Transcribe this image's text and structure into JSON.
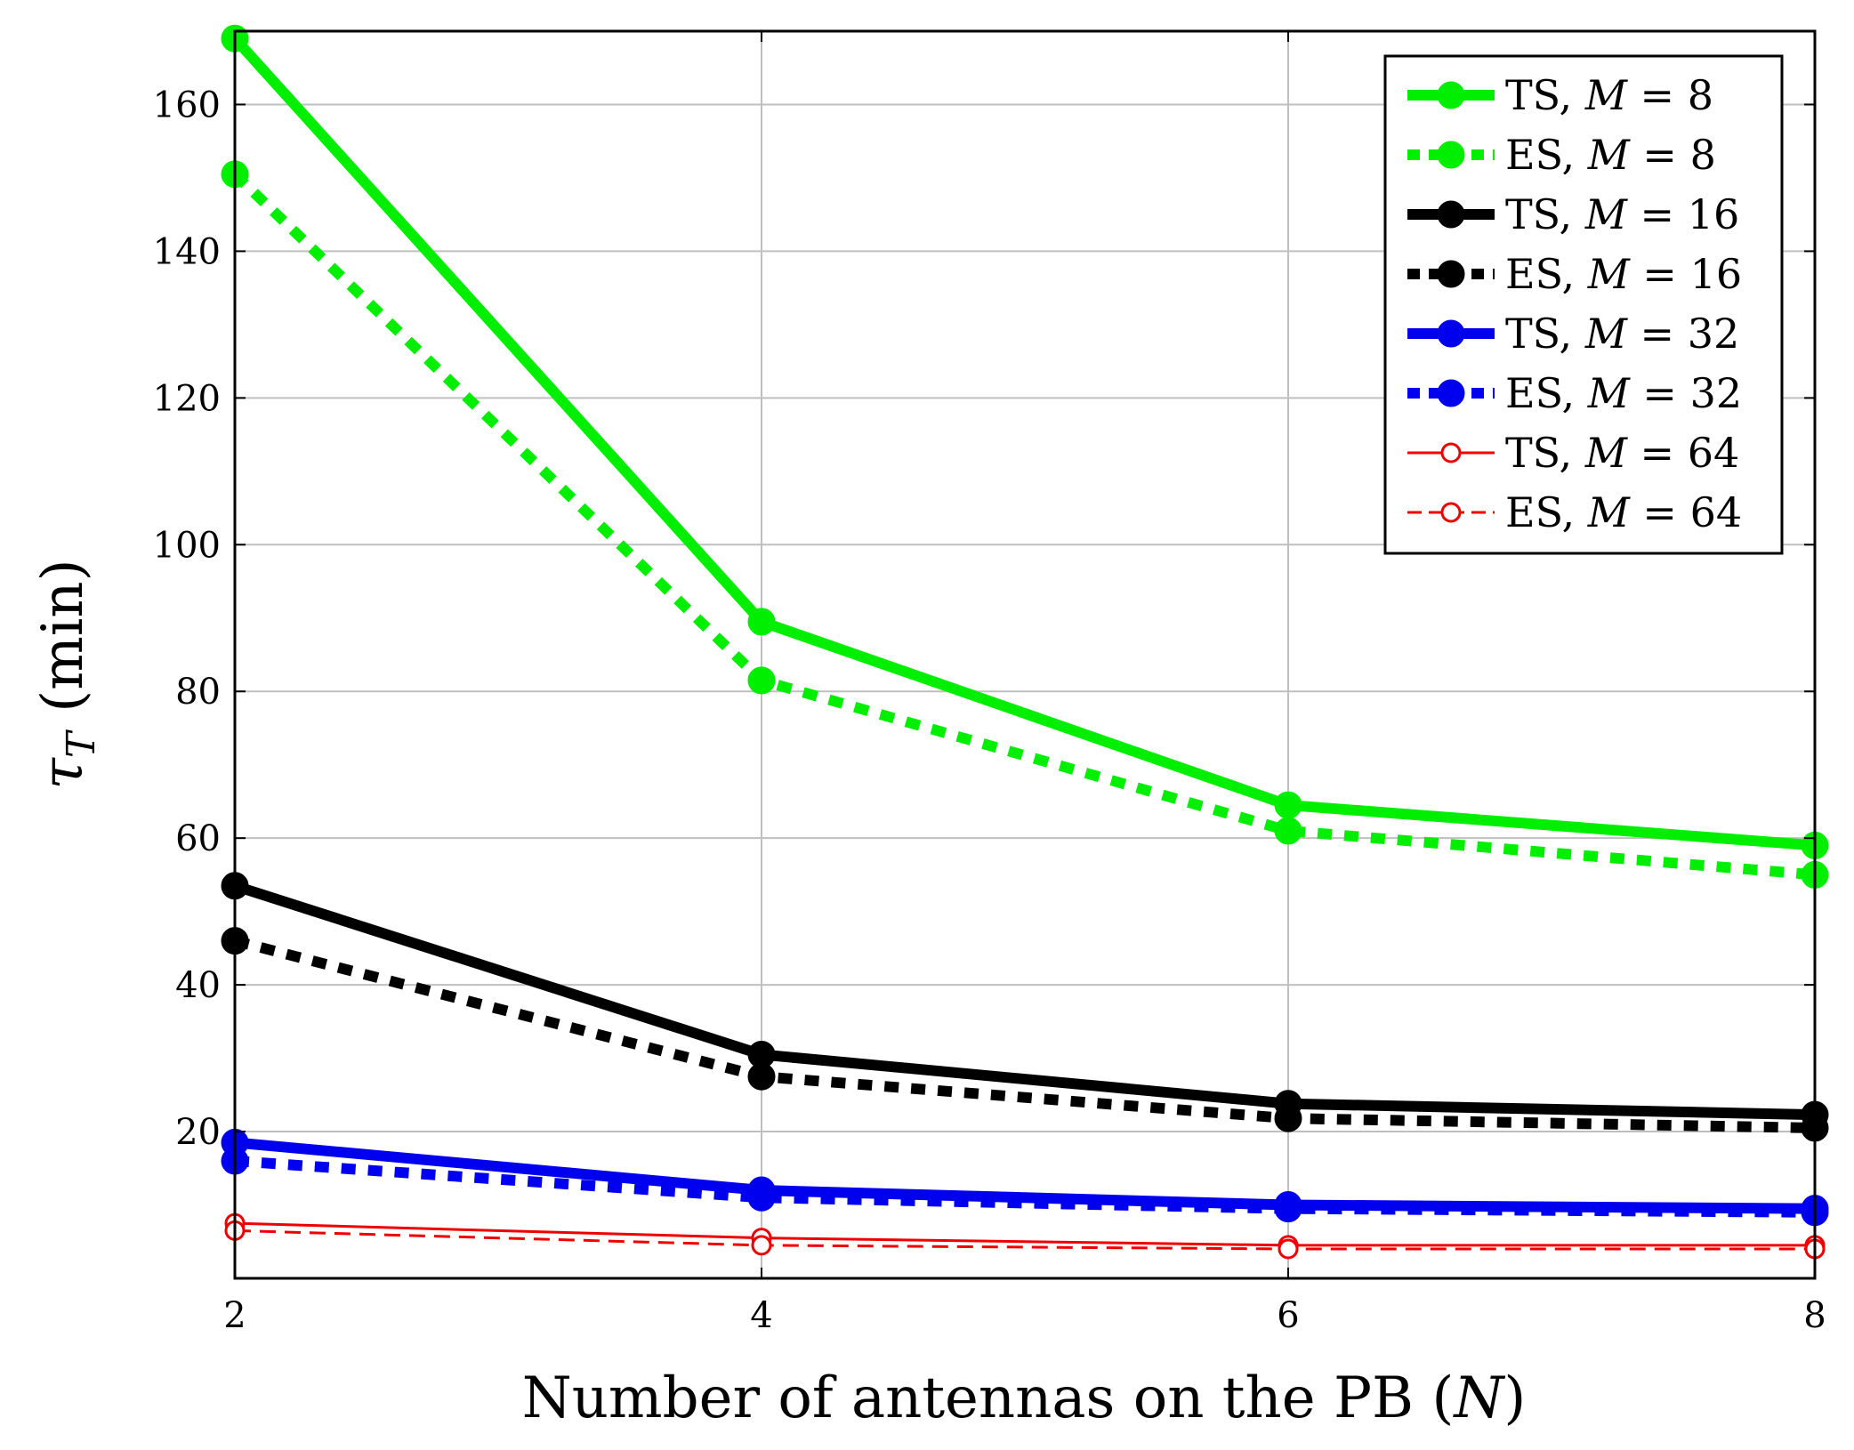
{
  "chart_data": {
    "type": "line",
    "title": "",
    "xlabel_prefix": "Number of antennas on the PB (",
    "xlabel_var": "N",
    "xlabel_suffix": ")",
    "ylabel_var": "τ",
    "ylabel_sub": "T",
    "ylabel_unit": "(min)",
    "xlim": [
      2,
      8
    ],
    "ylim": [
      0,
      170
    ],
    "xticks": [
      2,
      4,
      6,
      8
    ],
    "yticks": [
      20,
      40,
      60,
      80,
      100,
      120,
      140,
      160
    ],
    "grid": true,
    "legend_position": "top-right",
    "x": [
      2,
      4,
      6,
      8
    ],
    "series": [
      {
        "name": "TS, M = 8",
        "label": "TS, ",
        "m_value": "8",
        "color": "#00ee00",
        "style": "solid",
        "width": "thick",
        "marker": "filled",
        "values": [
          169,
          89.5,
          64.5,
          59
        ]
      },
      {
        "name": "ES, M = 8",
        "label": "ES, ",
        "m_value": "8",
        "color": "#00ee00",
        "style": "dashed",
        "width": "thick",
        "marker": "filled",
        "values": [
          150.5,
          81.5,
          61,
          55
        ]
      },
      {
        "name": "TS, M = 16",
        "label": "TS, ",
        "m_value": "16",
        "color": "#000000",
        "style": "solid",
        "width": "thick",
        "marker": "filled",
        "values": [
          53.5,
          30.5,
          23.8,
          22.3
        ]
      },
      {
        "name": "ES, M = 16",
        "label": "ES, ",
        "m_value": "16",
        "color": "#000000",
        "style": "dashed",
        "width": "thick",
        "marker": "filled",
        "values": [
          46,
          27.5,
          21.8,
          20.5
        ]
      },
      {
        "name": "TS, M = 32",
        "label": "TS, ",
        "m_value": "32",
        "color": "#0000ee",
        "style": "solid",
        "width": "thick",
        "marker": "filled",
        "values": [
          18.5,
          12,
          10,
          9.5
        ]
      },
      {
        "name": "ES, M = 32",
        "label": "ES, ",
        "m_value": "32",
        "color": "#0000ee",
        "style": "dashed",
        "width": "thick",
        "marker": "filled",
        "values": [
          16,
          11,
          9.5,
          9
        ]
      },
      {
        "name": "TS, M = 64",
        "label": "TS, ",
        "m_value": "64",
        "color": "#ee0000",
        "style": "solid",
        "width": "thin",
        "marker": "open",
        "values": [
          7.5,
          5.5,
          4.5,
          4.5
        ]
      },
      {
        "name": "ES, M = 64",
        "label": "ES, ",
        "m_value": "64",
        "color": "#ee0000",
        "style": "dashed",
        "width": "thin",
        "marker": "open",
        "values": [
          6.5,
          4.5,
          4,
          4
        ]
      }
    ]
  }
}
